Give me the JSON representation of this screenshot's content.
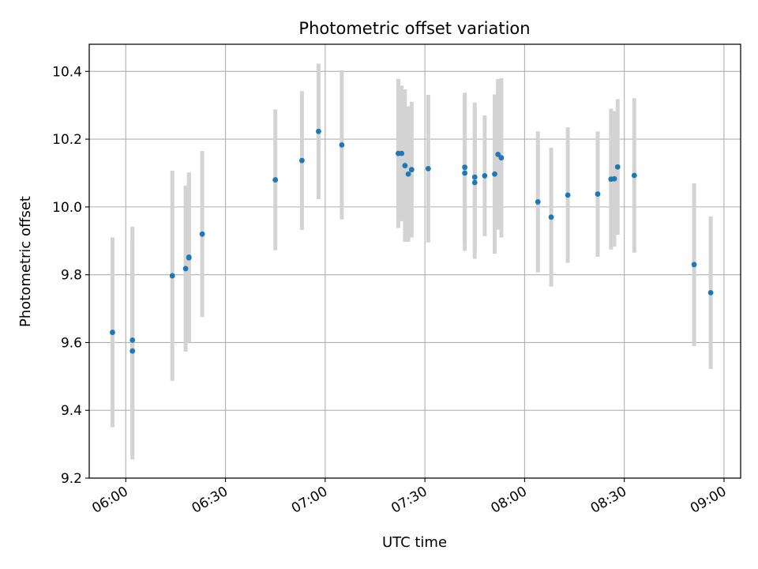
{
  "chart_data": {
    "type": "scatter",
    "title": "Photometric offset variation",
    "xlabel": "UTC time",
    "ylabel": "Photometric offset",
    "x_tick_labels": [
      "06:00",
      "06:30",
      "07:00",
      "07:30",
      "08:00",
      "08:30",
      "09:00"
    ],
    "y_tick_labels": [
      "9.2",
      "9.4",
      "9.6",
      "9.8",
      "10.0",
      "10.2",
      "10.4"
    ],
    "xlim": [
      "05:49",
      "09:05"
    ],
    "ylim": [
      9.2,
      10.48
    ],
    "grid": true,
    "colors": {
      "point": "#1f77b4",
      "errorbar": "#d3d3d3",
      "grid": "#b0b0b0",
      "axis": "#000000"
    },
    "points": [
      {
        "x": "05:56",
        "y": 9.63,
        "err": 0.28
      },
      {
        "x": "06:02",
        "y": 9.575,
        "err": 0.32
      },
      {
        "x": "06:02",
        "y": 9.607,
        "err": 0.335
      },
      {
        "x": "06:14",
        "y": 9.797,
        "err": 0.31
      },
      {
        "x": "06:18",
        "y": 9.818,
        "err": 0.245
      },
      {
        "x": "06:19",
        "y": 9.85,
        "err": 0.25
      },
      {
        "x": "06:19",
        "y": 9.852,
        "err": 0.25
      },
      {
        "x": "06:23",
        "y": 9.92,
        "err": 0.245
      },
      {
        "x": "06:45",
        "y": 10.08,
        "err": 0.208
      },
      {
        "x": "06:53",
        "y": 10.137,
        "err": 0.205
      },
      {
        "x": "06:58",
        "y": 10.223,
        "err": 0.2
      },
      {
        "x": "07:05",
        "y": 10.183,
        "err": 0.22
      },
      {
        "x": "07:22",
        "y": 10.158,
        "err": 0.22
      },
      {
        "x": "07:23",
        "y": 10.158,
        "err": 0.2
      },
      {
        "x": "07:24",
        "y": 10.122,
        "err": 0.225
      },
      {
        "x": "07:25",
        "y": 10.097,
        "err": 0.2
      },
      {
        "x": "07:26",
        "y": 10.11,
        "err": 0.2
      },
      {
        "x": "07:31",
        "y": 10.113,
        "err": 0.218
      },
      {
        "x": "07:42",
        "y": 10.1,
        "err": 0.23
      },
      {
        "x": "07:42",
        "y": 10.117,
        "err": 0.22
      },
      {
        "x": "07:45",
        "y": 10.072,
        "err": 0.225
      },
      {
        "x": "07:45",
        "y": 10.088,
        "err": 0.22
      },
      {
        "x": "07:48",
        "y": 10.092,
        "err": 0.178
      },
      {
        "x": "07:51",
        "y": 10.097,
        "err": 0.235
      },
      {
        "x": "07:52",
        "y": 10.155,
        "err": 0.222
      },
      {
        "x": "07:53",
        "y": 10.145,
        "err": 0.235
      },
      {
        "x": "08:04",
        "y": 10.015,
        "err": 0.208
      },
      {
        "x": "08:08",
        "y": 9.97,
        "err": 0.205
      },
      {
        "x": "08:13",
        "y": 10.035,
        "err": 0.2
      },
      {
        "x": "08:22",
        "y": 10.038,
        "err": 0.185
      },
      {
        "x": "08:26",
        "y": 10.082,
        "err": 0.208
      },
      {
        "x": "08:27",
        "y": 10.083,
        "err": 0.2
      },
      {
        "x": "08:28",
        "y": 10.118,
        "err": 0.2
      },
      {
        "x": "08:33",
        "y": 10.093,
        "err": 0.228
      },
      {
        "x": "08:51",
        "y": 9.83,
        "err": 0.24
      },
      {
        "x": "08:56",
        "y": 9.747,
        "err": 0.225
      }
    ]
  }
}
